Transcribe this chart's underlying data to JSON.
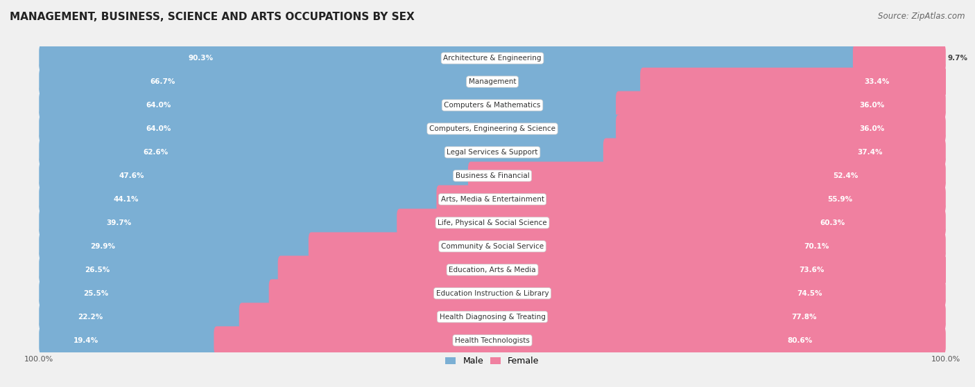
{
  "title": "MANAGEMENT, BUSINESS, SCIENCE AND ARTS OCCUPATIONS BY SEX",
  "source": "Source: ZipAtlas.com",
  "categories": [
    "Architecture & Engineering",
    "Management",
    "Computers & Mathematics",
    "Computers, Engineering & Science",
    "Legal Services & Support",
    "Business & Financial",
    "Arts, Media & Entertainment",
    "Life, Physical & Social Science",
    "Community & Social Service",
    "Education, Arts & Media",
    "Education Instruction & Library",
    "Health Diagnosing & Treating",
    "Health Technologists"
  ],
  "male_pct": [
    90.3,
    66.7,
    64.0,
    64.0,
    62.6,
    47.6,
    44.1,
    39.7,
    29.9,
    26.5,
    25.5,
    22.2,
    19.4
  ],
  "female_pct": [
    9.7,
    33.4,
    36.0,
    36.0,
    37.4,
    52.4,
    55.9,
    60.3,
    70.1,
    73.6,
    74.5,
    77.8,
    80.6
  ],
  "male_color": "#7bafd4",
  "female_color": "#f080a0",
  "bg_color": "#f0f0f0",
  "row_bg_color": "#ffffff",
  "row_border_color": "#d8d8d8",
  "title_fontsize": 11,
  "label_fontsize": 7.5,
  "category_fontsize": 7.5,
  "legend_fontsize": 9,
  "source_fontsize": 8.5,
  "axis_label_fontsize": 8
}
